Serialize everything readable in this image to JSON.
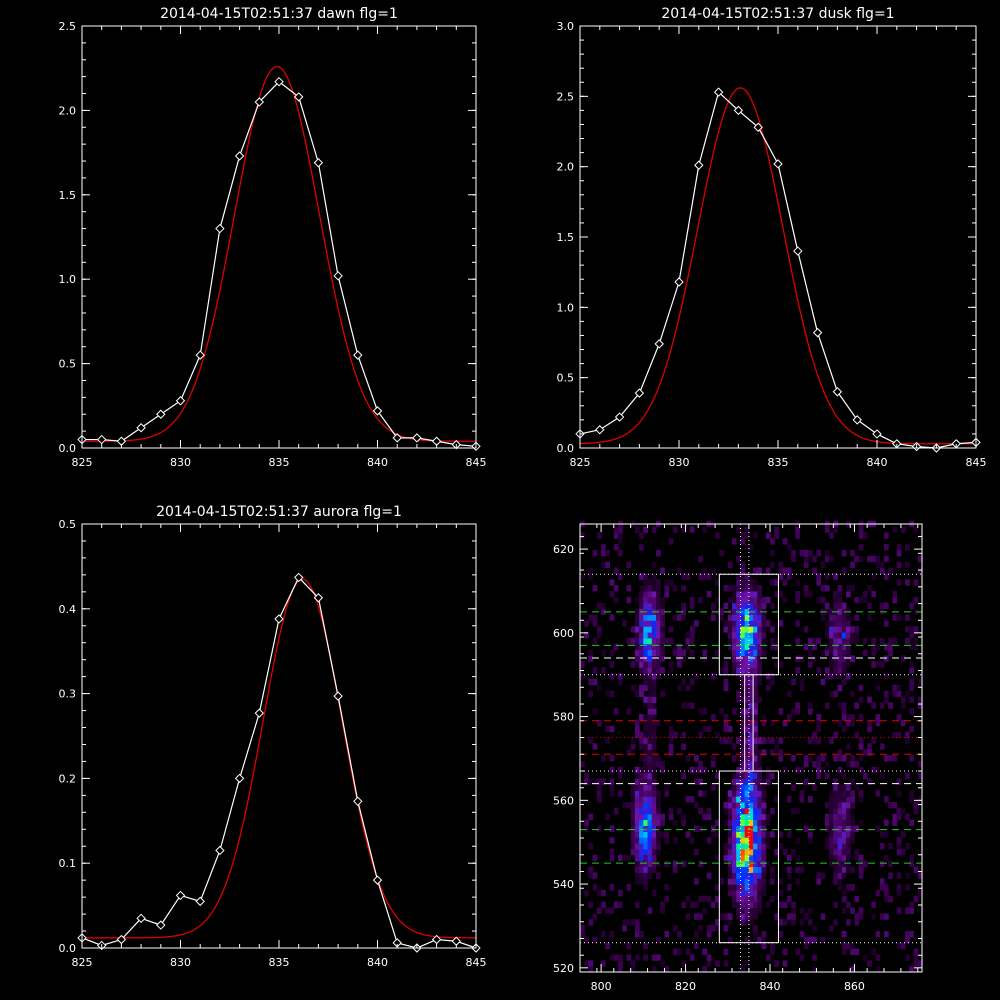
{
  "figure": {
    "background": "#000000",
    "axis_color": "#ffffff",
    "data_color": "#ffffff",
    "fit_color": "#dd0000"
  },
  "chart_data": [
    {
      "id": "dawn",
      "type": "line",
      "title": "2014-04-15T02:51:37 dawn flg=1",
      "xlim": [
        825,
        845
      ],
      "ylim": [
        0,
        2.5
      ],
      "xticks": [
        825,
        830,
        835,
        840,
        845
      ],
      "yticks": [
        0.0,
        0.5,
        1.0,
        1.5,
        2.0,
        2.5
      ],
      "xtick_labels": [
        "825",
        "830",
        "835",
        "840",
        "845"
      ],
      "ytick_labels": [
        "0.0",
        "0.5",
        "1.0",
        "1.5",
        "2.0",
        "2.5"
      ],
      "series": [
        {
          "role": "data",
          "marker": "diamond",
          "x": [
            825,
            826,
            827,
            828,
            829,
            830,
            831,
            832,
            833,
            834,
            835,
            836,
            837,
            838,
            839,
            840,
            841,
            842,
            843,
            844,
            845
          ],
          "y": [
            0.05,
            0.05,
            0.04,
            0.12,
            0.2,
            0.28,
            0.55,
            1.3,
            1.73,
            2.05,
            2.17,
            2.08,
            1.69,
            1.02,
            0.55,
            0.22,
            0.06,
            0.06,
            0.04,
            0.02,
            0.01
          ]
        },
        {
          "role": "fit",
          "model": "gaussian",
          "amplitude": 2.22,
          "center": 834.9,
          "sigma": 2.15,
          "offset": 0.04
        }
      ]
    },
    {
      "id": "dusk",
      "type": "line",
      "title": "2014-04-15T02:51:37 dusk flg=1",
      "xlim": [
        825,
        845
      ],
      "ylim": [
        0,
        3.0
      ],
      "xticks": [
        825,
        830,
        835,
        840,
        845
      ],
      "yticks": [
        0.0,
        0.5,
        1.0,
        1.5,
        2.0,
        2.5,
        3.0
      ],
      "xtick_labels": [
        "825",
        "830",
        "835",
        "840",
        "845"
      ],
      "ytick_labels": [
        "0.0",
        "0.5",
        "1.0",
        "1.5",
        "2.0",
        "2.5",
        "3.0"
      ],
      "series": [
        {
          "role": "data",
          "marker": "diamond",
          "x": [
            825,
            826,
            827,
            828,
            829,
            830,
            831,
            832,
            833,
            834,
            835,
            836,
            837,
            838,
            839,
            840,
            841,
            842,
            843,
            844,
            845
          ],
          "y": [
            0.1,
            0.13,
            0.22,
            0.39,
            0.74,
            1.18,
            2.01,
            2.53,
            2.4,
            2.28,
            2.02,
            1.4,
            0.82,
            0.4,
            0.2,
            0.1,
            0.03,
            0.01,
            0.0,
            0.03,
            0.04
          ]
        },
        {
          "role": "fit",
          "model": "gaussian",
          "amplitude": 2.53,
          "center": 833.1,
          "sigma": 2.15,
          "offset": 0.03
        }
      ]
    },
    {
      "id": "aurora",
      "type": "line",
      "title": "2014-04-15T02:51:37 aurora flg=1",
      "xlim": [
        825,
        845
      ],
      "ylim": [
        0,
        0.5
      ],
      "xticks": [
        825,
        830,
        835,
        840,
        845
      ],
      "yticks": [
        0.0,
        0.1,
        0.2,
        0.3,
        0.4,
        0.5
      ],
      "xtick_labels": [
        "825",
        "830",
        "835",
        "840",
        "845"
      ],
      "ytick_labels": [
        "0.0",
        "0.1",
        "0.2",
        "0.3",
        "0.4",
        "0.5"
      ],
      "series": [
        {
          "role": "data",
          "marker": "diamond",
          "x": [
            825,
            826,
            827,
            828,
            829,
            830,
            831,
            832,
            833,
            834,
            835,
            836,
            837,
            838,
            839,
            840,
            841,
            842,
            843,
            844,
            845
          ],
          "y": [
            0.012,
            0.003,
            0.01,
            0.035,
            0.027,
            0.062,
            0.055,
            0.115,
            0.2,
            0.277,
            0.388,
            0.437,
            0.413,
            0.297,
            0.173,
            0.08,
            0.006,
            0.0,
            0.01,
            0.008,
            0.0
          ]
        },
        {
          "role": "fit",
          "model": "gaussian",
          "amplitude": 0.423,
          "center": 836.2,
          "sigma": 2.0,
          "offset": 0.012
        }
      ]
    },
    {
      "id": "image",
      "type": "heatmap",
      "title": "",
      "xlim": [
        795,
        876
      ],
      "ylim": [
        519,
        626
      ],
      "xticks": [
        800,
        820,
        840,
        860
      ],
      "yticks": [
        520,
        540,
        560,
        580,
        600,
        620
      ],
      "xtick_labels": [
        "800",
        "820",
        "840",
        "860"
      ],
      "ytick_labels": [
        "520",
        "540",
        "560",
        "580",
        "600",
        "620"
      ],
      "colormap": "rainbow",
      "blobs": [
        {
          "x": 811,
          "y": 600,
          "sx": 1.8,
          "sy": 6,
          "amp": 0.5
        },
        {
          "x": 810,
          "y": 553,
          "sx": 1.8,
          "sy": 7,
          "amp": 0.5
        },
        {
          "x": 834,
          "y": 600,
          "sx": 2.2,
          "sy": 6,
          "amp": 0.65
        },
        {
          "x": 834,
          "y": 550,
          "sx": 2.2,
          "sy": 9,
          "amp": 0.9
        },
        {
          "x": 856,
          "y": 599,
          "sx": 1.8,
          "sy": 6,
          "amp": 0.25
        },
        {
          "x": 856,
          "y": 552,
          "sx": 1.8,
          "sy": 7,
          "amp": 0.25
        },
        {
          "x": 835,
          "y": 578,
          "sx": 1.2,
          "sy": 12,
          "amp": 0.18
        },
        {
          "x": 811,
          "y": 576,
          "sx": 1.5,
          "sy": 10,
          "amp": 0.1
        }
      ],
      "boxes": [
        {
          "x0": 828,
          "x1": 842,
          "y0": 590,
          "y1": 614
        },
        {
          "x0": 828,
          "x1": 842,
          "y0": 526,
          "y1": 567
        },
        {
          "x0": 834,
          "x1": 836,
          "y0": 567,
          "y1": 590
        }
      ],
      "hlines": [
        {
          "y": 614,
          "style": "dotted",
          "color": "#ffffff"
        },
        {
          "y": 605,
          "style": "dashed",
          "color": "#22cc22"
        },
        {
          "y": 597,
          "style": "dashed",
          "color": "#22cc22"
        },
        {
          "y": 594,
          "style": "dashed",
          "color": "#ffffff"
        },
        {
          "y": 590,
          "style": "dotted",
          "color": "#ffffff"
        },
        {
          "y": 579,
          "style": "dashed",
          "color": "#dd0000"
        },
        {
          "y": 575,
          "style": "dotted",
          "color": "#dd0000"
        },
        {
          "y": 571,
          "style": "dashed",
          "color": "#dd0000"
        },
        {
          "y": 567,
          "style": "dotted",
          "color": "#ffffff"
        },
        {
          "y": 564,
          "style": "dashed",
          "color": "#ffffff"
        },
        {
          "y": 553,
          "style": "dashed",
          "color": "#22cc22"
        },
        {
          "y": 545,
          "style": "dashed",
          "color": "#22cc22"
        },
        {
          "y": 526,
          "style": "dotted",
          "color": "#ffffff"
        }
      ],
      "vlines": [
        {
          "x": 833,
          "style": "dotted",
          "color": "#ffffff"
        },
        {
          "x": 835,
          "style": "dotted",
          "color": "#ffffff"
        }
      ]
    }
  ]
}
